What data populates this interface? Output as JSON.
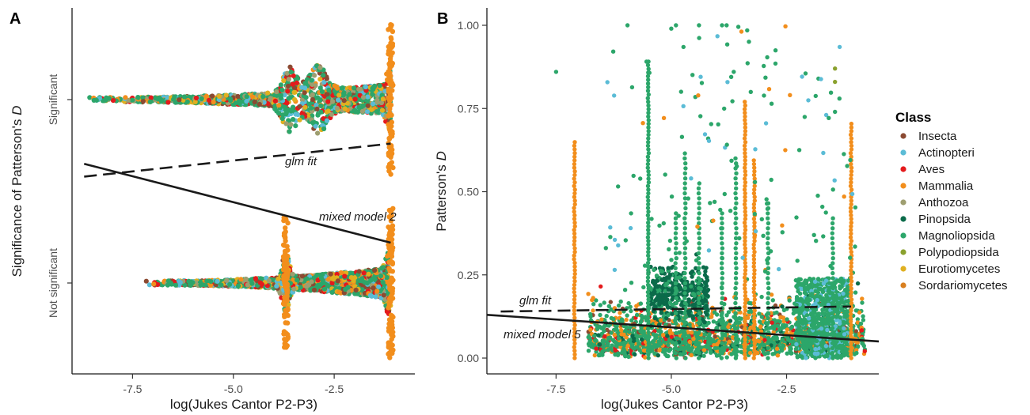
{
  "chart_data": [
    {
      "panel": "A",
      "type": "scatter",
      "title": "",
      "xlabel": "log(Jukes Cantor P2-P3)",
      "ylabel_prefix": "Significance of Patterson's",
      "ylabel_italic": "D",
      "xlim": [
        -9.0,
        -0.5
      ],
      "xticks": [
        "-7.5",
        "-5.0",
        "-2.5"
      ],
      "xtick_values": [
        -7.5,
        -5.0,
        -2.5
      ],
      "categories": [
        "Significant",
        "Not significant"
      ],
      "category_values": [
        1,
        0
      ],
      "grid": false,
      "clusters": [
        {
          "category": "Significant",
          "x_min": -8.7,
          "x_max": -1.1,
          "peaks": [
            {
              "x": -3.6,
              "w": 0.25
            },
            {
              "x": -2.9,
              "w": 0.3
            },
            {
              "x": -1.1,
              "w": 0.12
            }
          ]
        },
        {
          "category": "Not significant",
          "x_min": -7.2,
          "x_max": -1.1,
          "peaks": [
            {
              "x": -3.7,
              "w": 0.12
            },
            {
              "x": -1.1,
              "w": 0.12
            }
          ]
        }
      ],
      "lines": [
        {
          "label": "glm fit",
          "style": "dashed",
          "x": [
            -8.7,
            -1.1
          ],
          "y": [
            0.58,
            0.76
          ]
        },
        {
          "label": "mixed model 2",
          "style": "solid",
          "x": [
            -8.7,
            -1.1
          ],
          "y": [
            0.65,
            0.22
          ]
        }
      ]
    },
    {
      "panel": "B",
      "type": "scatter",
      "title": "",
      "xlabel": "log(Jukes Cantor P2-P3)",
      "ylabel_prefix": "Patterson's",
      "ylabel_italic": "D",
      "xlim": [
        -9.0,
        -0.5
      ],
      "ylim": [
        -0.05,
        1.05
      ],
      "xticks": [
        "-7.5",
        "-5.0",
        "-2.5"
      ],
      "xtick_values": [
        -7.5,
        -5.0,
        -2.5
      ],
      "yticks": [
        "0.00",
        "0.25",
        "0.50",
        "0.75",
        "1.00"
      ],
      "ytick_values": [
        0.0,
        0.25,
        0.5,
        0.75,
        1.0
      ],
      "grid": false,
      "vertical_streaks": [
        {
          "x": -7.1,
          "y_top": 0.65,
          "class": "Mammalia"
        },
        {
          "x": -5.5,
          "y_top": 0.9,
          "class": "Magnoliopsida"
        },
        {
          "x": -3.4,
          "y_top": 0.78,
          "class": "Mammalia"
        },
        {
          "x": -1.1,
          "y_top": 0.71,
          "class": "Mammalia"
        },
        {
          "x": -3.2,
          "y_top": 0.6,
          "class": "Mammalia"
        }
      ],
      "lines": [
        {
          "label": "glm fit",
          "style": "dashed",
          "x": [
            -8.7,
            -1.1
          ],
          "y": [
            0.14,
            0.155
          ]
        },
        {
          "label": "mixed model 5",
          "style": "solid",
          "x": [
            -9.0,
            -0.5
          ],
          "y": [
            0.13,
            0.05
          ]
        }
      ]
    }
  ],
  "panel_tags": [
    "A",
    "B"
  ],
  "legend": {
    "title": "Class",
    "placement": "right",
    "items": [
      {
        "label": "Insecta",
        "color": "#8b4a32"
      },
      {
        "label": "Actinopteri",
        "color": "#5bbcd6"
      },
      {
        "label": "Aves",
        "color": "#e41a1c"
      },
      {
        "label": "Mammalia",
        "color": "#f28e1c"
      },
      {
        "label": "Anthozoa",
        "color": "#9e9e70"
      },
      {
        "label": "Pinopsida",
        "color": "#0b6b4a"
      },
      {
        "label": "Magnoliopsida",
        "color": "#2ca66a"
      },
      {
        "label": "Polypodiopsida",
        "color": "#8aa12e"
      },
      {
        "label": "Eurotiomycetes",
        "color": "#e0b020"
      },
      {
        "label": "Sordariomycetes",
        "color": "#d97f1f"
      }
    ]
  }
}
